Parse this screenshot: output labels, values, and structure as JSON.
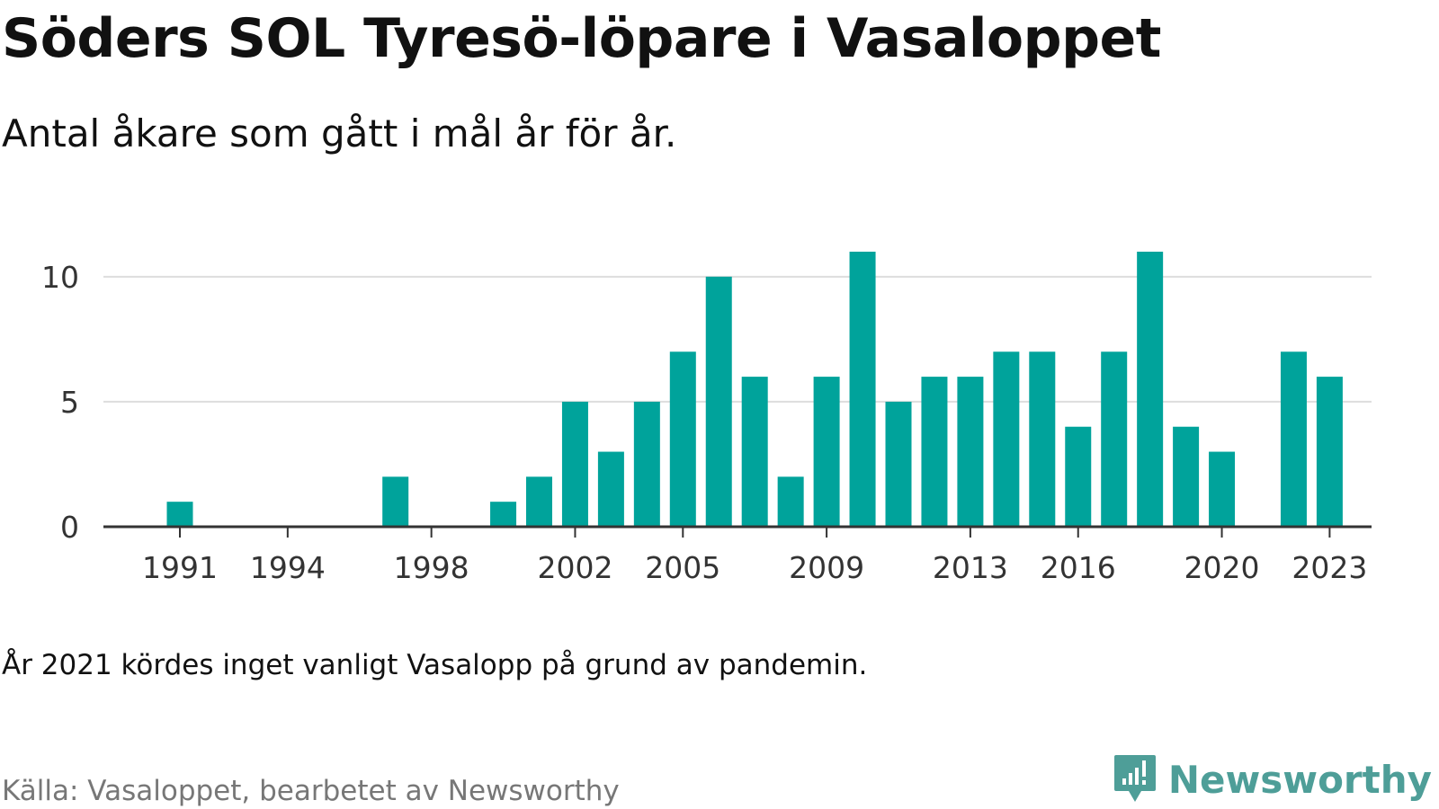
{
  "title": "Söders SOL Tyresö-löpare i Vasaloppet",
  "subtitle": "Antal åkare som gått i mål år för år.",
  "note": "År 2021 kördes inget vanligt Vasalopp på grund av pandemin.",
  "source": "Källa: Vasaloppet, bearbetet av Newsworthy",
  "brand": {
    "name": "Newsworthy",
    "icon": "newsworthy-logo-icon"
  },
  "colors": {
    "bar": "#00a39b",
    "grid": "#dddddd",
    "axis": "#333333",
    "brand": "#4e9e98"
  },
  "chart_data": {
    "type": "bar",
    "categories": [
      1991,
      1992,
      1993,
      1994,
      1995,
      1996,
      1997,
      1998,
      1999,
      2000,
      2001,
      2002,
      2003,
      2004,
      2005,
      2006,
      2007,
      2008,
      2009,
      2010,
      2011,
      2012,
      2013,
      2014,
      2015,
      2016,
      2017,
      2018,
      2019,
      2020,
      2021,
      2022,
      2023
    ],
    "values": [
      1,
      0,
      0,
      0,
      0,
      0,
      2,
      0,
      0,
      1,
      2,
      5,
      3,
      5,
      7,
      10,
      6,
      2,
      6,
      11,
      5,
      6,
      6,
      7,
      7,
      4,
      7,
      11,
      4,
      3,
      0,
      7,
      6
    ],
    "x_tick_labels": [
      "1991",
      "1994",
      "1998",
      "2002",
      "2005",
      "2009",
      "2013",
      "2016",
      "2020",
      "2023"
    ],
    "y_ticks": [
      0,
      5,
      10
    ],
    "ylim": [
      0,
      11
    ],
    "xlabel": "",
    "ylabel": "",
    "grid": true,
    "legend": false
  }
}
